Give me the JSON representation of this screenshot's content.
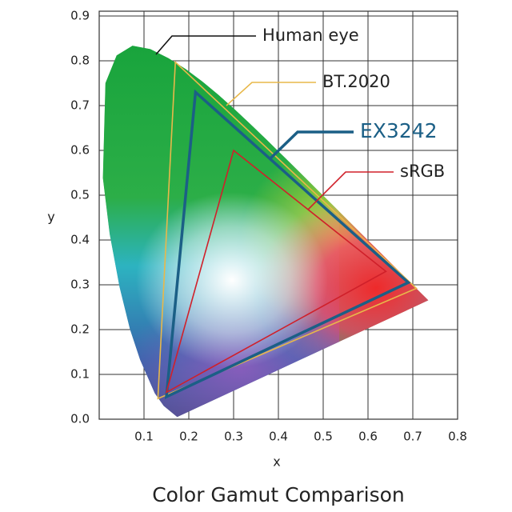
{
  "chart_data": {
    "type": "polygon",
    "title": "Color Gamut Comparison",
    "x_label": "x",
    "y_label": "y",
    "xlim": [
      0,
      0.8
    ],
    "ylim": [
      0,
      0.9
    ],
    "xticks": [
      0.1,
      0.2,
      0.3,
      0.4,
      0.5,
      0.6,
      0.7,
      0.8
    ],
    "yticks": [
      {
        "value": 0,
        "label": "0.0"
      },
      0.1,
      0.2,
      0.3,
      0.4,
      0.5,
      0.6,
      0.7,
      0.8,
      0.9
    ],
    "grid": true,
    "series": [
      {
        "name": "Human eye",
        "color": "#1aa33a",
        "filled": true,
        "x": [
          0.1741,
          0.144,
          0.1241,
          0.0913,
          0.0687,
          0.0454,
          0.0235,
          0.0082,
          0.0139,
          0.0389,
          0.0743,
          0.1142,
          0.1547,
          0.1929,
          0.2296,
          0.2658,
          0.3016,
          0.3373,
          0.3731,
          0.4087,
          0.4441,
          0.4788,
          0.5125,
          0.5448,
          0.5752,
          0.6029,
          0.627,
          0.6482,
          0.6658,
          0.6915,
          0.7347
        ],
        "y": [
          0.005,
          0.0297,
          0.0578,
          0.1327,
          0.2007,
          0.295,
          0.4127,
          0.5384,
          0.7502,
          0.812,
          0.8338,
          0.8262,
          0.8059,
          0.7816,
          0.7543,
          0.7243,
          0.6923,
          0.6589,
          0.6245,
          0.5896,
          0.5547,
          0.5202,
          0.4866,
          0.4544,
          0.4242,
          0.3965,
          0.3725,
          0.3514,
          0.334,
          0.3083,
          0.2653
        ]
      },
      {
        "name": "BT.2020",
        "color": "#e8b84a",
        "filled": false,
        "x": [
          0.708,
          0.17,
          0.131
        ],
        "y": [
          0.292,
          0.797,
          0.046
        ]
      },
      {
        "name": "EX3242",
        "color": "#1b5f86",
        "filled": false,
        "x": [
          0.69,
          0.215,
          0.15
        ],
        "y": [
          0.305,
          0.73,
          0.05
        ]
      },
      {
        "name": "sRGB",
        "color": "#d0202a",
        "filled": false,
        "x": [
          0.64,
          0.3,
          0.15
        ],
        "y": [
          0.33,
          0.6,
          0.06
        ]
      }
    ]
  }
}
